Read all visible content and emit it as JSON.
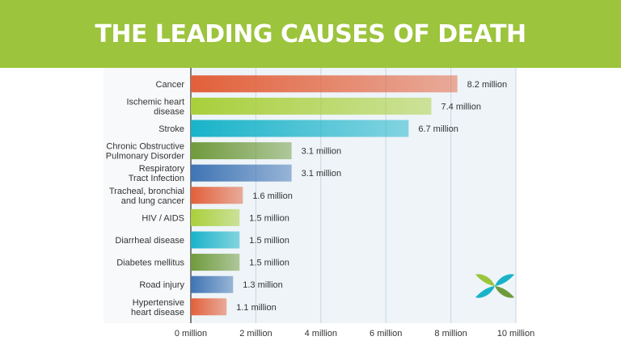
{
  "title": "THE LEADING CAUSES OF DEATH",
  "colors": {
    "banner": "#9cc43c",
    "orange": "#e2603a",
    "lime": "#a9cf3a",
    "teal": "#19b3c9",
    "green": "#6f9a3c",
    "blue": "#3f74b4"
  },
  "chart_data": {
    "type": "bar",
    "orientation": "horizontal",
    "title": "THE LEADING CAUSES OF DEATH",
    "categories": [
      [
        "Cancer"
      ],
      [
        "Ischemic heart",
        "disease"
      ],
      [
        "Stroke"
      ],
      [
        "Chronic Obstructive",
        "Pulmonary Disorder"
      ],
      [
        "Respiratory",
        "Tract Infection"
      ],
      [
        "Tracheal, bronchial",
        "and lung cancer"
      ],
      [
        "HIV / AIDS"
      ],
      [
        "Diarrheal disease"
      ],
      [
        "Diabetes mellitus"
      ],
      [
        "Road injury"
      ],
      [
        "Hypertensive",
        "heart disease"
      ]
    ],
    "values": [
      8.2,
      7.4,
      6.7,
      3.1,
      3.1,
      1.6,
      1.5,
      1.5,
      1.5,
      1.3,
      1.1
    ],
    "value_labels": [
      "8.2 million",
      "7.4 million",
      "6.7 million",
      "3.1 million",
      "3.1 million",
      "1.6 million",
      "1.5 million",
      "1.5 million",
      "1.5 million",
      "1.3 million",
      "1.1 million"
    ],
    "bar_colors": [
      "#e2603a",
      "#a9cf3a",
      "#19b3c9",
      "#6f9a3c",
      "#3f74b4",
      "#e2603a",
      "#a9cf3a",
      "#19b3c9",
      "#6f9a3c",
      "#3f74b4",
      "#e2603a"
    ],
    "xticks": [
      "0 million",
      "2 million",
      "4 million",
      "6 million",
      "8 million",
      "10 million"
    ],
    "xlim": [
      0,
      10
    ],
    "grid": true
  }
}
